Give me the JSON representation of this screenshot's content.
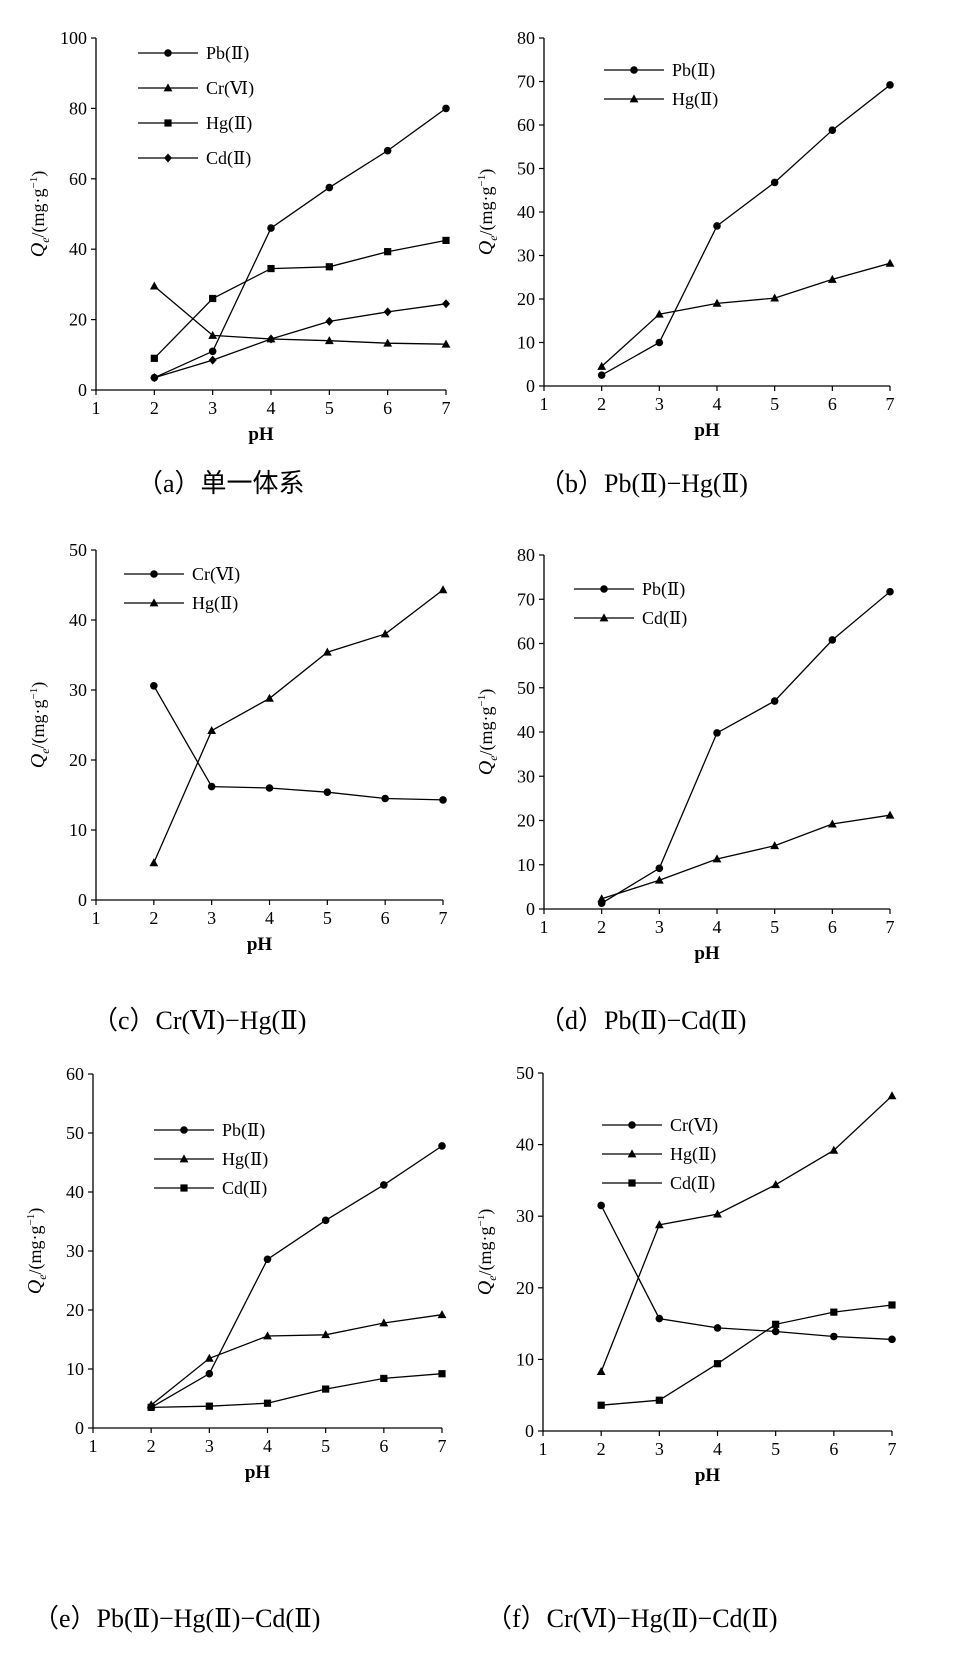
{
  "chart_data": [
    {
      "type": "line",
      "caption": "（a）单一体系",
      "xlabel": "pH",
      "ylabel": "Qe/(mg·g−1)",
      "x": [
        2,
        3,
        4,
        5,
        6,
        7
      ],
      "xlim": [
        1,
        7
      ],
      "ylim": [
        0,
        100
      ],
      "xticks": [
        1,
        2,
        3,
        4,
        5,
        6,
        7
      ],
      "yticks": [
        0,
        20,
        40,
        60,
        80,
        100
      ],
      "legend_position": "top-left",
      "series": [
        {
          "name": "Pb(Ⅱ)",
          "marker": "circle",
          "values": [
            3.5,
            11,
            46,
            57.5,
            68,
            80
          ]
        },
        {
          "name": "Cr(Ⅵ)",
          "marker": "triangle",
          "values": [
            29.5,
            15.5,
            14.5,
            14,
            13.3,
            13
          ]
        },
        {
          "name": "Hg(Ⅱ)",
          "marker": "square",
          "values": [
            9,
            26,
            34.5,
            35,
            39.3,
            42.5
          ]
        },
        {
          "name": "Cd(Ⅱ)",
          "marker": "diamond",
          "values": [
            3.5,
            8.5,
            14.5,
            19.5,
            22.2,
            24.5
          ]
        }
      ]
    },
    {
      "type": "line",
      "caption": "（b）Pb(Ⅱ)−Hg(Ⅱ)",
      "xlabel": "pH",
      "ylabel": "Qe/(mg·g−1)",
      "x": [
        2,
        3,
        4,
        5,
        6,
        7
      ],
      "xlim": [
        1,
        7
      ],
      "ylim": [
        0,
        80
      ],
      "xticks": [
        1,
        2,
        3,
        4,
        5,
        6,
        7
      ],
      "yticks": [
        0,
        10,
        20,
        30,
        40,
        50,
        60,
        70,
        80
      ],
      "legend_position": "top-left",
      "series": [
        {
          "name": "Pb(Ⅱ)",
          "marker": "circle",
          "values": [
            2.5,
            10,
            36.8,
            46.8,
            58.8,
            69.2
          ]
        },
        {
          "name": "Hg(Ⅱ)",
          "marker": "triangle",
          "values": [
            4.5,
            16.5,
            19,
            20.2,
            24.5,
            28.2
          ]
        }
      ]
    },
    {
      "type": "line",
      "caption": "（c）Cr(Ⅵ)−Hg(Ⅱ)",
      "xlabel": "pH",
      "ylabel": "Qe/(mg·g−1)",
      "x": [
        2,
        3,
        4,
        5,
        6,
        7
      ],
      "xlim": [
        1,
        7
      ],
      "ylim": [
        0,
        50
      ],
      "xticks": [
        1,
        2,
        3,
        4,
        5,
        6,
        7
      ],
      "yticks": [
        0,
        10,
        20,
        30,
        40,
        50
      ],
      "legend_position": "top-left",
      "series": [
        {
          "name": "Cr(Ⅵ)",
          "marker": "circle",
          "values": [
            30.6,
            16.2,
            16,
            15.4,
            14.5,
            14.3
          ]
        },
        {
          "name": "Hg(Ⅱ)",
          "marker": "triangle",
          "values": [
            5.3,
            24.2,
            28.8,
            35.4,
            38,
            44.3
          ]
        }
      ]
    },
    {
      "type": "line",
      "caption": "（d）Pb(Ⅱ)−Cd(Ⅱ)",
      "xlabel": "pH",
      "ylabel": "Qe/(mg·g−1)",
      "x": [
        2,
        3,
        4,
        5,
        6,
        7
      ],
      "xlim": [
        1,
        7
      ],
      "ylim": [
        0,
        80
      ],
      "xticks": [
        1,
        2,
        3,
        4,
        5,
        6,
        7
      ],
      "yticks": [
        0,
        10,
        20,
        30,
        40,
        50,
        60,
        70,
        80
      ],
      "legend_position": "top-left",
      "series": [
        {
          "name": "Pb(Ⅱ)",
          "marker": "circle",
          "values": [
            1.3,
            9.2,
            39.8,
            47,
            60.8,
            71.7
          ]
        },
        {
          "name": "Cd(Ⅱ)",
          "marker": "triangle",
          "values": [
            2.3,
            6.5,
            11.3,
            14.3,
            19.2,
            21.2
          ]
        }
      ]
    },
    {
      "type": "line",
      "caption": "（e）Pb(Ⅱ)−Hg(Ⅱ)−Cd(Ⅱ)",
      "xlabel": "pH",
      "ylabel": "Qe/(mg·g−1)",
      "x": [
        2,
        3,
        4,
        5,
        6,
        7
      ],
      "xlim": [
        1,
        7
      ],
      "ylim": [
        0,
        60
      ],
      "xticks": [
        1,
        2,
        3,
        4,
        5,
        6,
        7
      ],
      "yticks": [
        0,
        10,
        20,
        30,
        40,
        50,
        60
      ],
      "legend_position": "top-right",
      "series": [
        {
          "name": "Pb(Ⅱ)",
          "marker": "circle",
          "values": [
            3.5,
            9.2,
            28.6,
            35.2,
            41.2,
            47.8
          ]
        },
        {
          "name": "Hg(Ⅱ)",
          "marker": "triangle",
          "values": [
            3.9,
            11.8,
            15.6,
            15.8,
            17.8,
            19.2
          ]
        },
        {
          "name": "Cd(Ⅱ)",
          "marker": "square",
          "values": [
            3.5,
            3.7,
            4.2,
            6.6,
            8.4,
            9.2
          ]
        }
      ]
    },
    {
      "type": "line",
      "caption": "（f）Cr(Ⅵ)−Hg(Ⅱ)−Cd(Ⅱ)",
      "xlabel": "pH",
      "ylabel": "Qe/(mg·g−1)",
      "x": [
        2,
        3,
        4,
        5,
        6,
        7
      ],
      "xlim": [
        1,
        7
      ],
      "ylim": [
        0,
        50
      ],
      "xticks": [
        1,
        2,
        3,
        4,
        5,
        6,
        7
      ],
      "yticks": [
        0,
        10,
        20,
        30,
        40,
        50
      ],
      "legend_position": "top-right",
      "series": [
        {
          "name": "Cr(Ⅵ)",
          "marker": "circle",
          "values": [
            31.5,
            15.7,
            14.4,
            13.9,
            13.2,
            12.8
          ]
        },
        {
          "name": "Hg(Ⅱ)",
          "marker": "triangle",
          "values": [
            8.3,
            28.8,
            30.3,
            34.4,
            39.2,
            46.8
          ]
        },
        {
          "name": "Cd(Ⅱ)",
          "marker": "square",
          "values": [
            3.6,
            4.3,
            9.4,
            14.9,
            16.6,
            17.6
          ]
        }
      ]
    }
  ]
}
